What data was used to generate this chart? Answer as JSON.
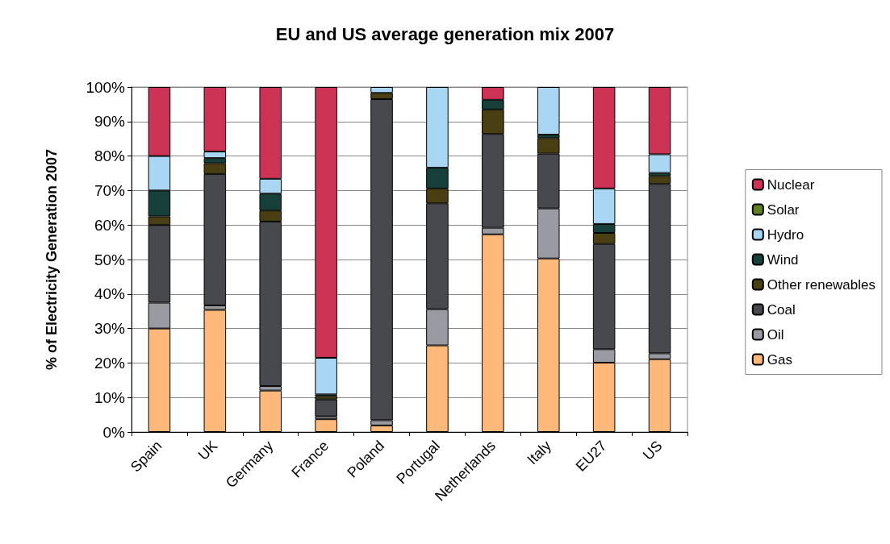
{
  "chart_data": {
    "type": "bar",
    "title": "EU and US average generation mix 2007",
    "ylabel": "% of Electricity Generation 2007",
    "stacked": true,
    "categories": [
      "Spain",
      "UK",
      "Germany",
      "France",
      "Poland",
      "Portugal",
      "Netherlands",
      "Italy",
      "EU27",
      "US"
    ],
    "series": [
      {
        "name": "Gas",
        "color": "#fdb87a",
        "values": [
          30,
          35.4,
          12,
          3.7,
          1.9,
          25.1,
          57.3,
          50.3,
          20.1,
          21.1
        ]
      },
      {
        "name": "Oil",
        "color": "#9a9aa2",
        "values": [
          7.5,
          1.3,
          1.3,
          0.8,
          1.5,
          10.5,
          1.9,
          14.5,
          3.9,
          1.7
        ]
      },
      {
        "name": "Coal",
        "color": "#48484f",
        "values": [
          22.5,
          38.1,
          47.7,
          4.9,
          93.1,
          30.7,
          27.2,
          15.9,
          30.5,
          49.1
        ]
      },
      {
        "name": "Other renewables",
        "color": "#4a3f12",
        "values": [
          2.5,
          3.1,
          3.2,
          1.0,
          1.8,
          4.3,
          7.1,
          4.5,
          3.2,
          2.3
        ]
      },
      {
        "name": "Wind",
        "color": "#17403a",
        "values": [
          7.5,
          1.5,
          4.9,
          0.5,
          0,
          6.0,
          2.8,
          1.0,
          2.6,
          0.9
        ]
      },
      {
        "name": "Hydro",
        "color": "#a8d6f3",
        "values": [
          10,
          1.9,
          4.3,
          10.6,
          1.7,
          23.4,
          0,
          13.8,
          10.3,
          5.4
        ]
      },
      {
        "name": "Solar",
        "color": "#5f7f22",
        "values": [
          0,
          0,
          0,
          0,
          0,
          0,
          0,
          0,
          0,
          0
        ]
      },
      {
        "name": "Nuclear",
        "color": "#cc3355",
        "values": [
          20,
          18.7,
          26.6,
          78.5,
          0,
          0,
          3.7,
          0,
          29.4,
          19.5
        ]
      }
    ],
    "ylim": [
      0,
      100
    ],
    "yticks": [
      {
        "value": 0,
        "label": "0%"
      },
      {
        "value": 10,
        "label": "10%"
      },
      {
        "value": 20,
        "label": "20%"
      },
      {
        "value": 30,
        "label": "30%"
      },
      {
        "value": 40,
        "label": "40%"
      },
      {
        "value": 50,
        "label": "50%"
      },
      {
        "value": 60,
        "label": "60%"
      },
      {
        "value": 70,
        "label": "70%"
      },
      {
        "value": 80,
        "label": "80%"
      },
      {
        "value": 90,
        "label": "90%"
      },
      {
        "value": 100,
        "label": "100%"
      }
    ],
    "grid": "y",
    "legend": "right"
  }
}
